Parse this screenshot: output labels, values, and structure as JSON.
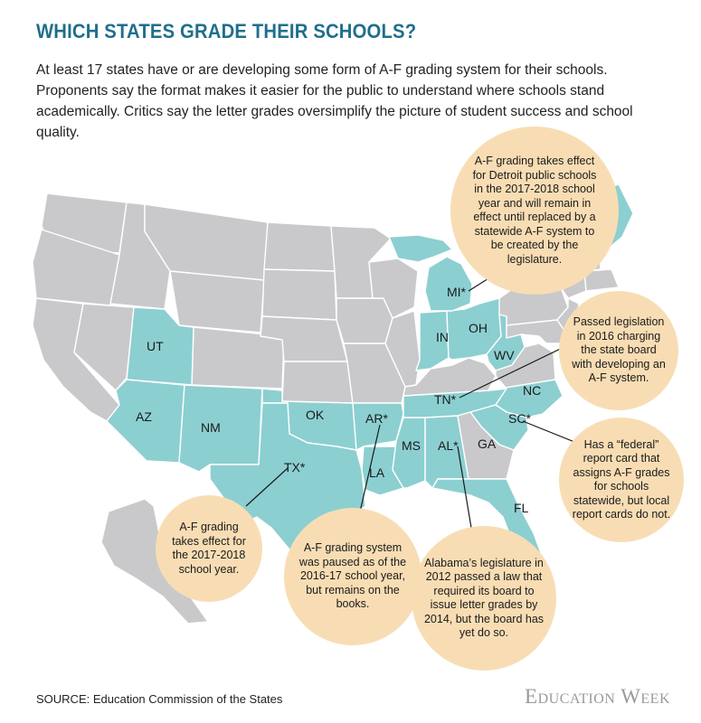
{
  "title": "WHICH STATES GRADE THEIR SCHOOLS?",
  "intro": "At least 17 states have or are developing some form of A-F grading system for their schools. Proponents say the format makes it easier for the public to understand where schools stand academically. Critics say the letter grades oversimplify the picture of student success and school quality.",
  "colors": {
    "title": "#1f6f8b",
    "a_f_state": "#8ccfd1",
    "other_state": "#c9c9cb",
    "callout": "#f8ddb4"
  },
  "state_labels": {
    "UT": "UT",
    "AZ": "AZ",
    "NM": "NM",
    "OK": "OK",
    "TX": "TX*",
    "AR": "AR*",
    "LA": "LA",
    "MS": "MS",
    "AL": "AL*",
    "GA": "GA",
    "FL": "FL",
    "TN": "TN*",
    "NC": "NC",
    "SC": "SC*",
    "WV": "WV",
    "OH": "OH",
    "IN": "IN",
    "MI": "MI*"
  },
  "callouts": {
    "mi": "A-F grading takes effect for Detroit public schools in the 2017-2018 school year and will remain in effect until replaced by a statewide A-F system to be created by the legislature.",
    "tn": "Passed legislation in 2016 charging the state board with developing an A-F system.",
    "sc": "Has a “federal” report card that assigns A-F grades for schools statewide, but local report cards do not.",
    "tx": "A-F grading takes effect for the 2017-2018 school year.",
    "ar": "A-F grading system was paused as of the 2016-17 school year, but remains on the books.",
    "al": "Alabama’s legislature in 2012 passed a law that required its board to issue letter grades by 2014, but the board has yet do so."
  },
  "source": "SOURCE: Education Commission of the States",
  "logo": "Education Week"
}
